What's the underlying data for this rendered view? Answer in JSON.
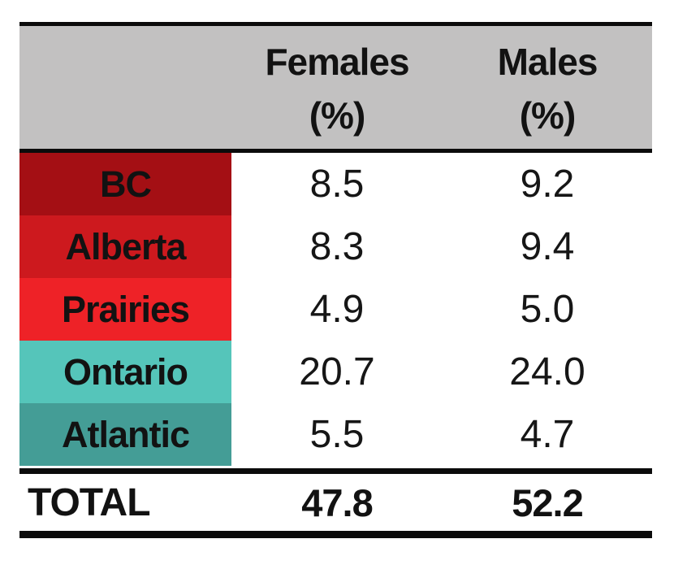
{
  "chart_data": {
    "type": "table",
    "columns": [
      "",
      "Females (%)",
      "Males (%)"
    ],
    "categories": [
      "BC",
      "Alberta",
      "Prairies",
      "Ontario",
      "Atlantic",
      "TOTAL"
    ],
    "series": [
      {
        "name": "Females (%)",
        "values": [
          8.5,
          8.3,
          4.9,
          20.7,
          5.5,
          47.8
        ]
      },
      {
        "name": "Males (%)",
        "values": [
          9.2,
          9.4,
          5.0,
          24.0,
          4.7,
          52.2
        ]
      }
    ],
    "layout_hints": "two-column percentage table with colored row-label swatches, gray header band, black horizontal rules"
  },
  "header": {
    "females_line1": "Females",
    "females_line2": "(%)",
    "males_line1": "Males",
    "males_line2": "(%)"
  },
  "rows": [
    {
      "region": "BC",
      "females": "8.5",
      "males": "9.2",
      "color": "#a40f14"
    },
    {
      "region": "Alberta",
      "females": "8.3",
      "males": "9.4",
      "color": "#cd191e"
    },
    {
      "region": "Prairies",
      "females": "4.9",
      "males": "5.0",
      "color": "#ee2227"
    },
    {
      "region": "Ontario",
      "females": "20.7",
      "males": "24.0",
      "color": "#55c5ba"
    },
    {
      "region": "Atlantic",
      "females": "5.5",
      "males": "4.7",
      "color": "#449d96"
    }
  ],
  "total": {
    "label": "TOTAL",
    "females": "47.8",
    "males": "52.2"
  },
  "colors": {
    "header_bg": "#c2c1c1",
    "rule": "#0b0b0b",
    "text": "#121212",
    "page_bg": "#ffffff"
  }
}
